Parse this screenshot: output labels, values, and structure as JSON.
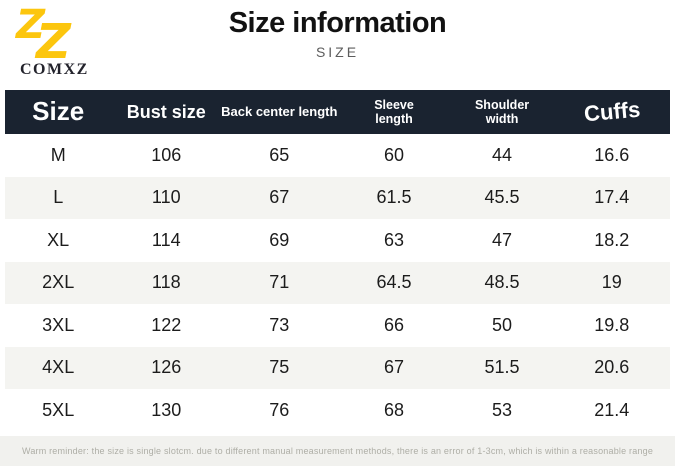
{
  "logo": {
    "monogram_letter": "Z",
    "brand": "COMXZ"
  },
  "title": {
    "heading": "Size information",
    "subtitle": "SIZE"
  },
  "chart_data": {
    "type": "table",
    "title": "Size information",
    "columns": [
      "Size",
      "Bust size",
      "Back center length",
      "Sleeve length",
      "Shoulder width",
      "Cuffs"
    ],
    "rows": [
      [
        "M",
        "106",
        "65",
        "60",
        "44",
        "16.6"
      ],
      [
        "L",
        "110",
        "67",
        "61.5",
        "45.5",
        "17.4"
      ],
      [
        "XL",
        "114",
        "69",
        "63",
        "47",
        "18.2"
      ],
      [
        "2XL",
        "118",
        "71",
        "64.5",
        "48.5",
        "19"
      ],
      [
        "3XL",
        "122",
        "73",
        "66",
        "50",
        "19.8"
      ],
      [
        "4XL",
        "126",
        "75",
        "67",
        "51.5",
        "20.6"
      ],
      [
        "5XL",
        "130",
        "76",
        "68",
        "53",
        "21.4"
      ]
    ]
  },
  "table_display": {
    "columns": [
      {
        "label": "Size"
      },
      {
        "label": "Bust size"
      },
      {
        "label": "Back center length"
      },
      {
        "label": "Sleeve\nlength"
      },
      {
        "label": "Shoulder\nwidth"
      },
      {
        "label": "Cuffs"
      }
    ]
  },
  "footer": {
    "note": "Warm reminder: the size is single slotcm. due to different manual measurement methods, there is an error of 1-3cm, which is within a reasonable range"
  },
  "colors": {
    "brand_gold": "#FCC60E",
    "header_bg": "#1a2330",
    "alt_row_bg": "#f4f4f1",
    "footer_bg": "#f1f1ee",
    "footer_text": "#aeaea6"
  }
}
